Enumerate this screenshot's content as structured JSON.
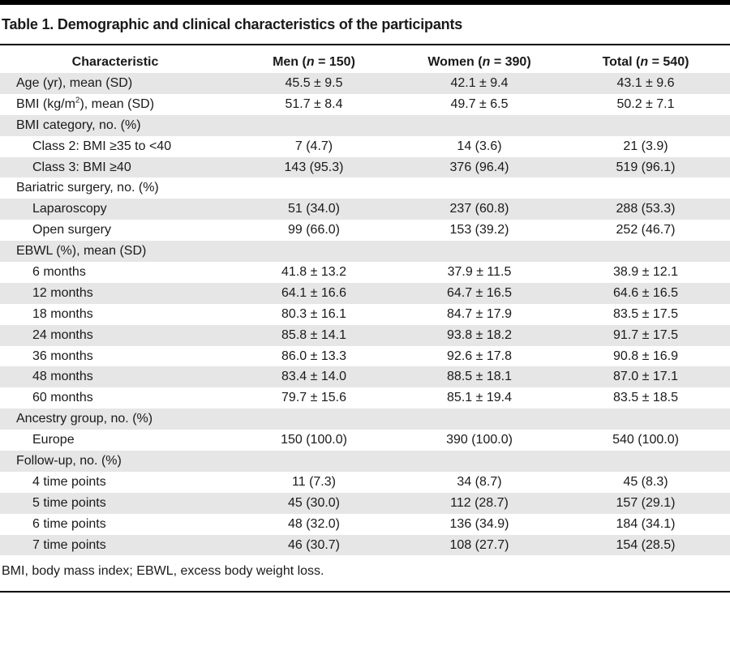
{
  "title": "Table 1. Demographic and clinical characteristics of the participants",
  "columns": {
    "characteristic": "Characteristic",
    "men": {
      "label": "Men (",
      "n_sym": "n",
      "rest": " = 150)"
    },
    "women": {
      "label": "Women (",
      "n_sym": "n",
      "rest": " = 390)"
    },
    "total": {
      "label": "Total (",
      "n_sym": "n",
      "rest": " = 540)"
    }
  },
  "rows": [
    {
      "label": "Age (yr), mean (SD)",
      "men": "45.5 ± 9.5",
      "women": "42.1 ± 9.4",
      "total": "43.1 ± 9.6"
    },
    {
      "label_pre": "BMI (kg/m",
      "label_sup": "2",
      "label_post": "), mean (SD)",
      "men": "51.7 ± 8.4",
      "women": "49.7 ± 6.5",
      "total": "50.2 ± 7.1"
    },
    {
      "label": "BMI category, no. (%)",
      "men": "",
      "women": "",
      "total": ""
    },
    {
      "label": "Class 2: BMI ≥35 to <40",
      "men": "7 (4.7)",
      "women": "14 (3.6)",
      "total": "21 (3.9)"
    },
    {
      "label": "Class 3: BMI ≥40",
      "men": "143 (95.3)",
      "women": "376 (96.4)",
      "total": "519 (96.1)"
    },
    {
      "label": "Bariatric surgery, no. (%)",
      "men": "",
      "women": "",
      "total": ""
    },
    {
      "label": "Laparoscopy",
      "men": "51 (34.0)",
      "women": "237 (60.8)",
      "total": "288 (53.3)"
    },
    {
      "label": "Open surgery",
      "men": "99 (66.0)",
      "women": "153 (39.2)",
      "total": "252 (46.7)"
    },
    {
      "label": "EBWL (%), mean (SD)",
      "men": "",
      "women": "",
      "total": ""
    },
    {
      "label": "6 months",
      "men": "41.8 ± 13.2",
      "women": "37.9 ± 11.5",
      "total": "38.9 ± 12.1"
    },
    {
      "label": "12 months",
      "men": "64.1 ± 16.6",
      "women": "64.7 ± 16.5",
      "total": "64.6 ± 16.5"
    },
    {
      "label": "18 months",
      "men": "80.3 ± 16.1",
      "women": "84.7 ± 17.9",
      "total": "83.5 ± 17.5"
    },
    {
      "label": "24 months",
      "men": "85.8 ± 14.1",
      "women": "93.8 ± 18.2",
      "total": "91.7 ± 17.5"
    },
    {
      "label": "36 months",
      "men": "86.0 ± 13.3",
      "women": "92.6 ± 17.8",
      "total": "90.8 ± 16.9"
    },
    {
      "label": "48 months",
      "men": "83.4 ± 14.0",
      "women": "88.5 ± 18.1",
      "total": "87.0 ± 17.1"
    },
    {
      "label": "60 months",
      "men": "79.7 ± 15.6",
      "women": "85.1 ± 19.4",
      "total": "83.5 ± 18.5"
    },
    {
      "label": "Ancestry group, no. (%)",
      "men": "",
      "women": "",
      "total": ""
    },
    {
      "label": "Europe",
      "men": "150 (100.0)",
      "women": "390 (100.0)",
      "total": "540 (100.0)"
    },
    {
      "label": "Follow-up, no. (%)",
      "men": "",
      "women": "",
      "total": ""
    },
    {
      "label": "4 time points",
      "men": "11 (7.3)",
      "women": "34 (8.7)",
      "total": "45 (8.3)"
    },
    {
      "label": "5 time points",
      "men": "45 (30.0)",
      "women": "112 (28.7)",
      "total": "157 (29.1)"
    },
    {
      "label": "6 time points",
      "men": "48 (32.0)",
      "women": "136 (34.9)",
      "total": "184 (34.1)"
    },
    {
      "label": "7 time points",
      "men": "46 (30.7)",
      "women": "108 (27.7)",
      "total": "154 (28.5)"
    }
  ],
  "footnote": "BMI, body mass index; EBWL, excess body weight loss.",
  "colors": {
    "shade": "#e6e6e6",
    "rule": "#000000",
    "text": "#1a1a1a"
  }
}
